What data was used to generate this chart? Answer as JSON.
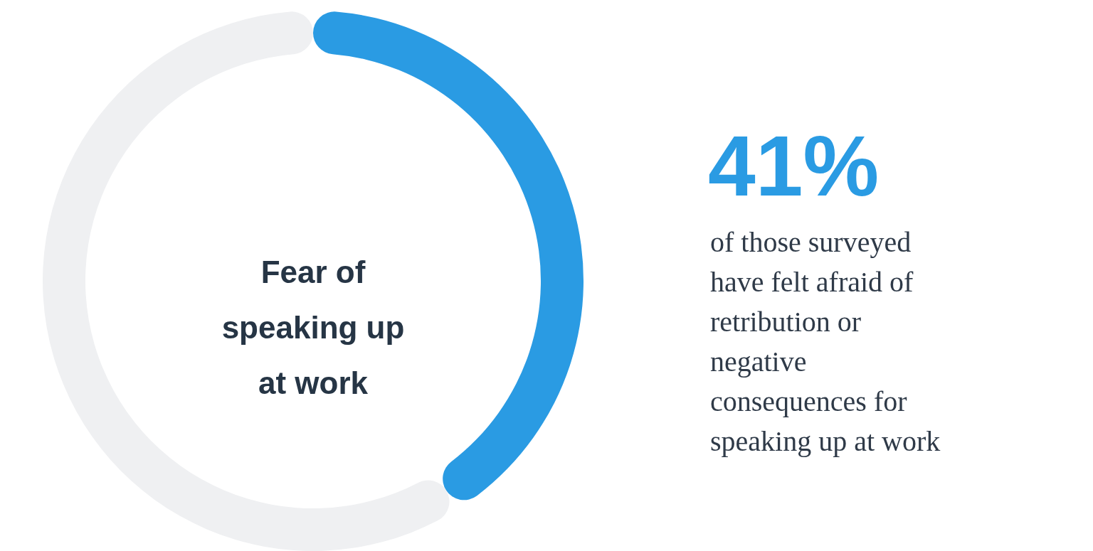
{
  "chart_data": {
    "type": "donut",
    "title": "Fear of speaking up at work",
    "categories": [
      null,
      null
    ],
    "values": [
      41,
      59
    ],
    "colors": [
      "#2a9be3",
      "#eff0f2"
    ],
    "value_labels": [
      "41%",
      null
    ],
    "annotations": [
      "of those surveyed have felt afraid of retribution or negative consequences for speaking up at work"
    ]
  }
}
